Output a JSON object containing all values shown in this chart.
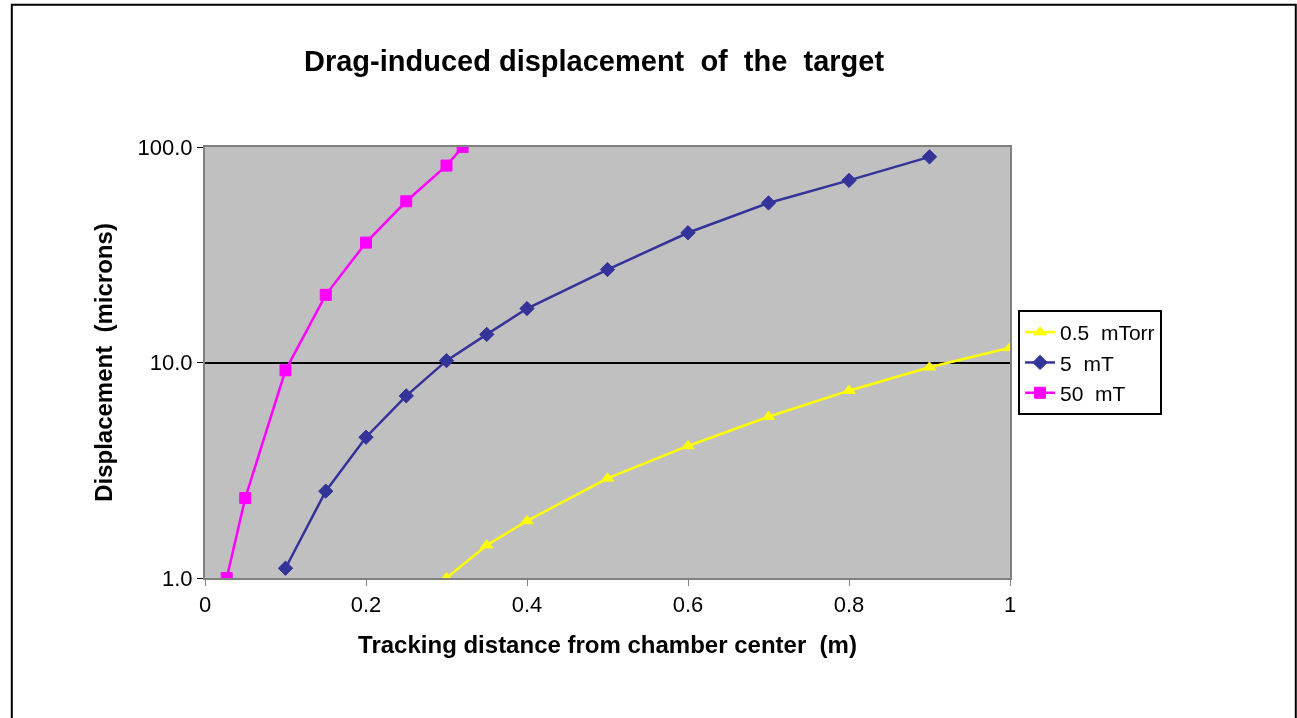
{
  "chart_data": {
    "type": "line",
    "title": "Drag-induced displacement  of  the  target",
    "xlabel": "Tracking distance from chamber center  (m)",
    "ylabel": "Displacement  (microns)",
    "log": "y",
    "grid": "y",
    "legend": "right",
    "line_style": "solid",
    "xlim": [
      0,
      1
    ],
    "xticks": [
      0,
      0.2,
      0.4,
      0.6,
      0.8,
      1
    ],
    "ylim": [
      1,
      100
    ],
    "yticks": [
      {
        "value": 1,
        "label": "1.0"
      },
      {
        "value": 10,
        "label": "10.0"
      },
      {
        "value": 100,
        "label": "100.0"
      }
    ],
    "series": [
      {
        "name": "0.5  mTorr",
        "color": "#ffff00",
        "marker": "triangle",
        "x": [
          0.3,
          0.35,
          0.4,
          0.5,
          0.6,
          0.7,
          0.8,
          0.9,
          1.0
        ],
        "values": [
          1.0,
          1.42,
          1.84,
          2.9,
          4.1,
          5.6,
          7.4,
          9.5,
          11.7
        ]
      },
      {
        "name": "5  mT",
        "color": "#333399",
        "marker": "diamond",
        "x": [
          0.1,
          0.15,
          0.2,
          0.25,
          0.3,
          0.35,
          0.4,
          0.5,
          0.6,
          0.7,
          0.8,
          0.9
        ],
        "values": [
          1.11,
          2.53,
          4.5,
          7.0,
          10.2,
          13.5,
          17.8,
          27,
          40,
          55,
          70,
          90
        ]
      },
      {
        "name": "50  mT",
        "color": "#ff00ff",
        "marker": "square",
        "x": [
          0.027,
          0.05,
          0.1,
          0.15,
          0.2,
          0.25,
          0.3,
          0.32
        ],
        "values": [
          1.0,
          2.35,
          9.2,
          20.6,
          36,
          56,
          82,
          100
        ]
      }
    ]
  }
}
